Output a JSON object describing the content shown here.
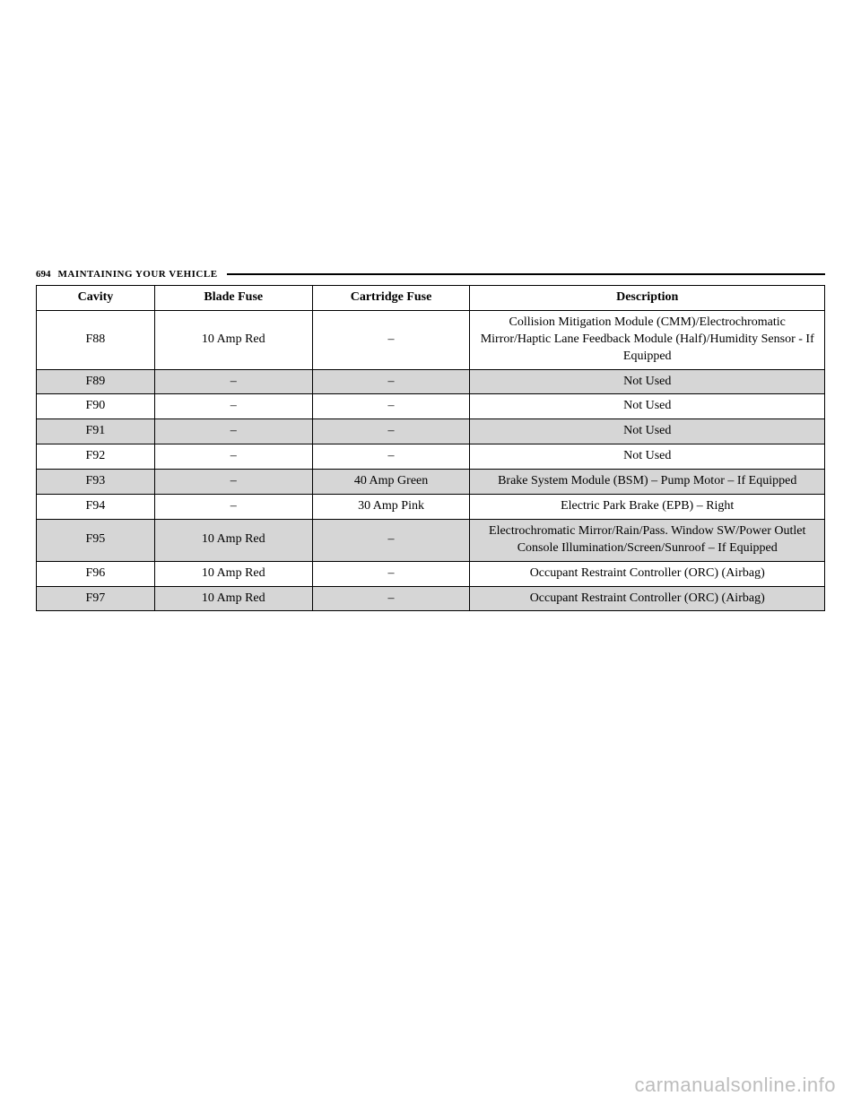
{
  "header": {
    "page_number": "694",
    "section": "MAINTAINING YOUR VEHICLE"
  },
  "table": {
    "columns": [
      "Cavity",
      "Blade Fuse",
      "Cartridge Fuse",
      "Description"
    ],
    "rows": [
      {
        "shaded": false,
        "cells": [
          "F88",
          "10 Amp Red",
          "–",
          "Collision Mitigation Module (CMM)/Electrochromatic Mirror/Haptic Lane Feedback Module (Half)/Humidity Sensor - If Equipped"
        ]
      },
      {
        "shaded": true,
        "cells": [
          "F89",
          "–",
          "–",
          "Not Used"
        ]
      },
      {
        "shaded": false,
        "cells": [
          "F90",
          "–",
          "–",
          "Not Used"
        ]
      },
      {
        "shaded": true,
        "cells": [
          "F91",
          "–",
          "–",
          "Not Used"
        ]
      },
      {
        "shaded": false,
        "cells": [
          "F92",
          "–",
          "–",
          "Not Used"
        ]
      },
      {
        "shaded": true,
        "cells": [
          "F93",
          "–",
          "40 Amp Green",
          "Brake System Module (BSM) – Pump Motor – If Equipped"
        ]
      },
      {
        "shaded": false,
        "cells": [
          "F94",
          "–",
          "30 Amp Pink",
          "Electric Park Brake (EPB) – Right"
        ]
      },
      {
        "shaded": true,
        "cells": [
          "F95",
          "10 Amp Red",
          "–",
          "Electrochromatic Mirror/Rain/Pass. Window SW/Power Outlet Console Illumination/Screen/Sunroof – If Equipped"
        ]
      },
      {
        "shaded": false,
        "cells": [
          "F96",
          "10 Amp Red",
          "–",
          "Occupant Restraint Controller (ORC) (Airbag)"
        ]
      },
      {
        "shaded": true,
        "cells": [
          "F97",
          "10 Amp Red",
          "–",
          "Occupant Restraint Controller (ORC) (Airbag)"
        ]
      }
    ]
  },
  "watermark": "carmanualsonline.info",
  "colors": {
    "shaded_row": "#d6d6d6",
    "border": "#000000",
    "background": "#ffffff",
    "watermark": "#bdbdbd"
  }
}
